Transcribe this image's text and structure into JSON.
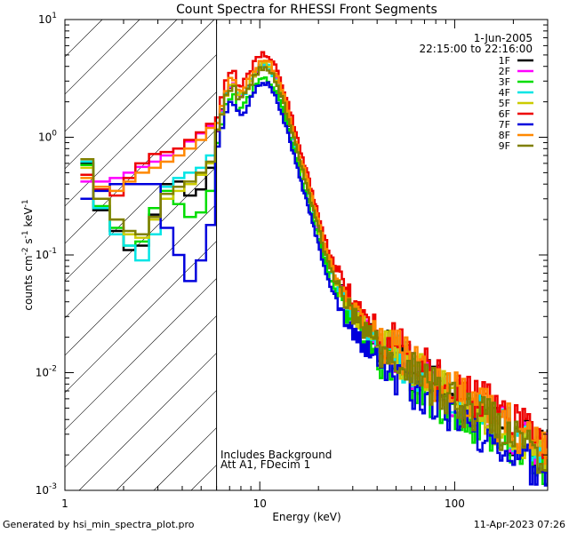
{
  "chart_data": {
    "type": "line",
    "title": "Count Spectra for RHESSI Front Segments",
    "xlabel": "Energy (keV)",
    "ylabel_base": "counts cm",
    "ylabel_exp1": "-2",
    "ylabel_mid": " s",
    "ylabel_exp2": "-1",
    "ylabel_tail": " keV",
    "ylabel_exp3": "-1",
    "xscale": "log",
    "yscale": "log",
    "xlim": [
      1,
      300
    ],
    "ylim": [
      0.001,
      10
    ],
    "x_ticks": [
      {
        "value": 1,
        "label": "1"
      },
      {
        "value": 10,
        "label": "10"
      },
      {
        "value": 100,
        "label": "100"
      }
    ],
    "y_ticks": [
      {
        "value": 0.001,
        "base": "10",
        "exp": "-3"
      },
      {
        "value": 0.01,
        "base": "10",
        "exp": "-2"
      },
      {
        "value": 0.1,
        "base": "10",
        "exp": "-1"
      },
      {
        "value": 1,
        "base": "10",
        "exp": "0"
      },
      {
        "value": 10,
        "base": "10",
        "exp": "1"
      }
    ],
    "date": "1-Jun-2005",
    "time_range": "22:15:00 to 22:16:00",
    "hatched_region_xmax": 6,
    "annotations": [
      "Includes Background",
      "Att A1, FDecim 1"
    ],
    "series": [
      {
        "name": "1F",
        "color": "#000000",
        "offset": 1.0,
        "low": [
          0.6,
          0.24,
          0.16,
          0.11,
          0.12,
          0.22,
          0.4,
          0.42,
          0.32,
          0.36,
          0.55
        ]
      },
      {
        "name": "2F",
        "color": "#ff00ff",
        "offset": 1.0,
        "low": [
          0.42,
          0.42,
          0.45,
          0.5,
          0.56,
          0.62,
          0.7,
          0.8,
          0.92,
          1.08,
          1.25
        ]
      },
      {
        "name": "3F",
        "color": "#00dd00",
        "offset": 0.78,
        "low": [
          0.58,
          0.26,
          0.17,
          0.12,
          0.13,
          0.25,
          0.35,
          0.27,
          0.21,
          0.23,
          0.35
        ]
      },
      {
        "name": "4F",
        "color": "#00e5e5",
        "offset": 1.0,
        "low": [
          0.62,
          0.25,
          0.15,
          0.12,
          0.09,
          0.15,
          0.38,
          0.45,
          0.5,
          0.55,
          0.7
        ]
      },
      {
        "name": "5F",
        "color": "#cccc00",
        "offset": 1.0,
        "low": [
          0.55,
          0.3,
          0.2,
          0.15,
          0.14,
          0.2,
          0.3,
          0.35,
          0.4,
          0.48,
          0.6
        ]
      },
      {
        "name": "6F",
        "color": "#ee0000",
        "offset": 1.25,
        "low": [
          0.48,
          0.36,
          0.32,
          0.45,
          0.6,
          0.72,
          0.75,
          0.8,
          0.95,
          1.1,
          1.3
        ]
      },
      {
        "name": "7F",
        "color": "#0000dd",
        "offset": 0.7,
        "low": [
          0.3,
          0.35,
          0.4,
          0.4,
          0.4,
          0.4,
          0.17,
          0.1,
          0.06,
          0.09,
          0.18
        ]
      },
      {
        "name": "8F",
        "color": "#ff8800",
        "offset": 1.1,
        "low": [
          0.45,
          0.38,
          0.35,
          0.42,
          0.5,
          0.55,
          0.62,
          0.7,
          0.8,
          0.95,
          1.2
        ]
      },
      {
        "name": "9F",
        "color": "#808000",
        "offset": 0.95,
        "low": [
          0.65,
          0.3,
          0.2,
          0.16,
          0.15,
          0.21,
          0.33,
          0.38,
          0.42,
          0.5,
          0.62
        ]
      }
    ]
  },
  "footer": {
    "generated_by": "Generated by hsi_min_spectra_plot.pro",
    "date": "11-Apr-2023 07:26"
  }
}
